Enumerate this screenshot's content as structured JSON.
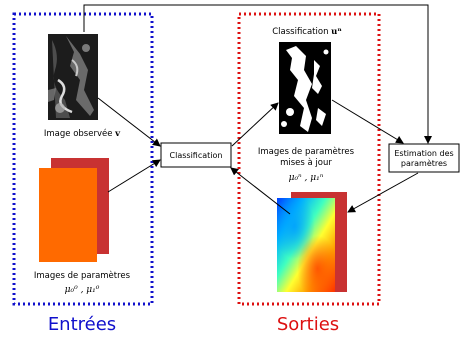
{
  "groups": {
    "inputs": {
      "label": "Entrées",
      "color": "#1010cc"
    },
    "outputs": {
      "label": "Sorties",
      "color": "#dd1010"
    }
  },
  "nodes": {
    "observed_image": {
      "caption_text": "Image observée",
      "caption_math": "v"
    },
    "input_params": {
      "caption_line1": "Images de paramètres",
      "caption_math": "μ₀⁰ , μ₁⁰"
    },
    "classification_box": {
      "label": "Classification"
    },
    "classification_output": {
      "caption_text": "Classification",
      "caption_math": "uⁿ"
    },
    "updated_params": {
      "caption_line1": "Images de paramètres",
      "caption_line2": "mises à jour",
      "caption_math": "μ₀ⁿ , μ₁ⁿ"
    },
    "estimation_box": {
      "label_line1": "Estimation des",
      "label_line2": "paramètres"
    }
  },
  "colors": {
    "param_front": "#ff6a00",
    "param_back": "#c83232",
    "arrow": "#000000"
  }
}
